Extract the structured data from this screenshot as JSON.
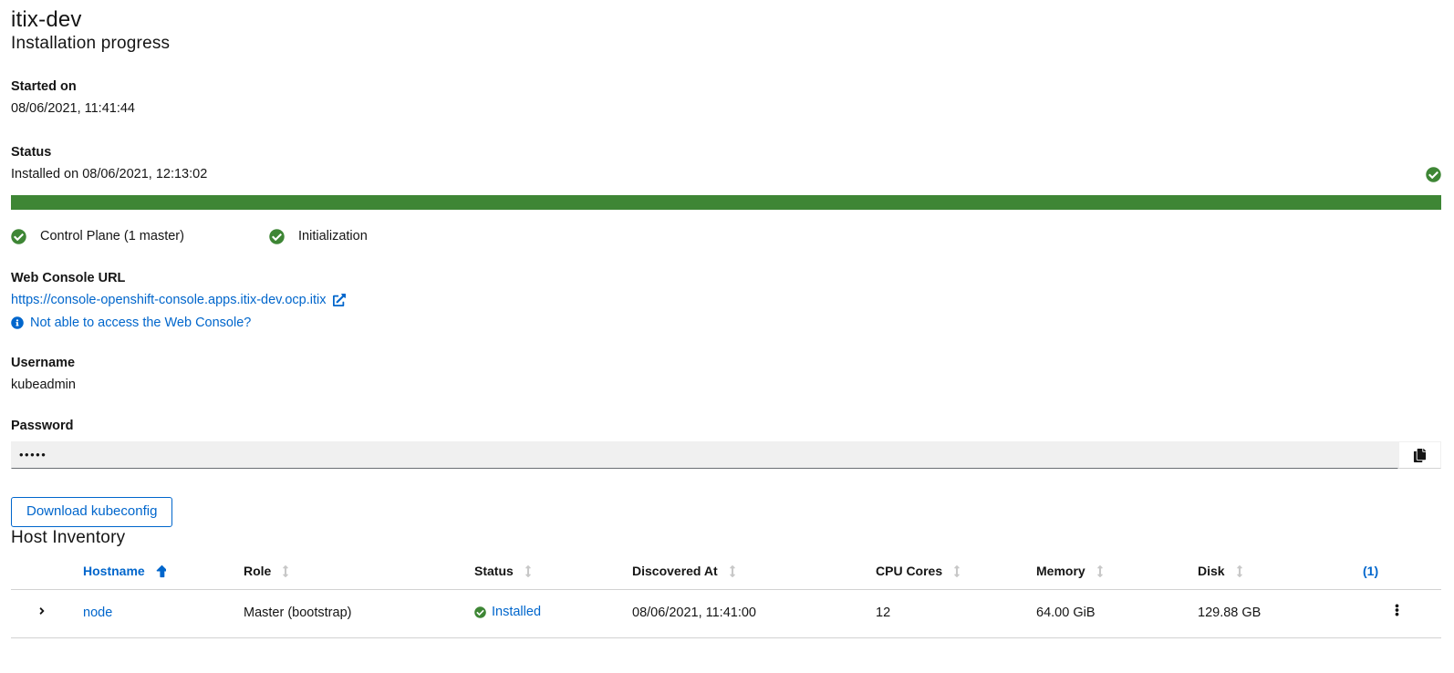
{
  "page": {
    "title": "itix-dev"
  },
  "installation": {
    "heading": "Installation progress",
    "started_label": "Started on",
    "started_value": "08/06/2021, 11:41:44",
    "status_label": "Status",
    "status_value": "Installed on 08/06/2021, 12:13:02",
    "progress_percent": 100,
    "steps": [
      {
        "label": "Control Plane (1 master)",
        "state": "completed"
      },
      {
        "label": "Initialization",
        "state": "completed"
      }
    ]
  },
  "credentials": {
    "web_console_label": "Web Console URL",
    "web_console_url": "https://console-openshift-console.apps.itix-dev.ocp.itix",
    "troubleshoot_link": "Not able to access the Web Console?",
    "username_label": "Username",
    "username_value": "kubeadmin",
    "password_label": "Password",
    "password_masked": "•••••",
    "download_button": "Download kubeconfig"
  },
  "host_inventory": {
    "heading": "Host Inventory",
    "columns": {
      "hostname": "Hostname",
      "role": "Role",
      "status": "Status",
      "discovered_at": "Discovered At",
      "cpu_cores": "CPU Cores",
      "memory": "Memory",
      "disk": "Disk"
    },
    "sorted_column": "Hostname",
    "sort_direction": "asc",
    "count_link": "(1)",
    "rows": [
      {
        "hostname": "node",
        "role": "Master (bootstrap)",
        "status": "Installed",
        "discovered_at": "08/06/2021, 11:41:00",
        "cpu_cores": "12",
        "memory": "64.00 GiB",
        "disk": "129.88 GB"
      }
    ]
  },
  "colors": {
    "link_blue": "#0066cc",
    "success_green": "#3e8635",
    "text_dark": "#151515",
    "sort_idle_gray": "#c8c8c8"
  }
}
